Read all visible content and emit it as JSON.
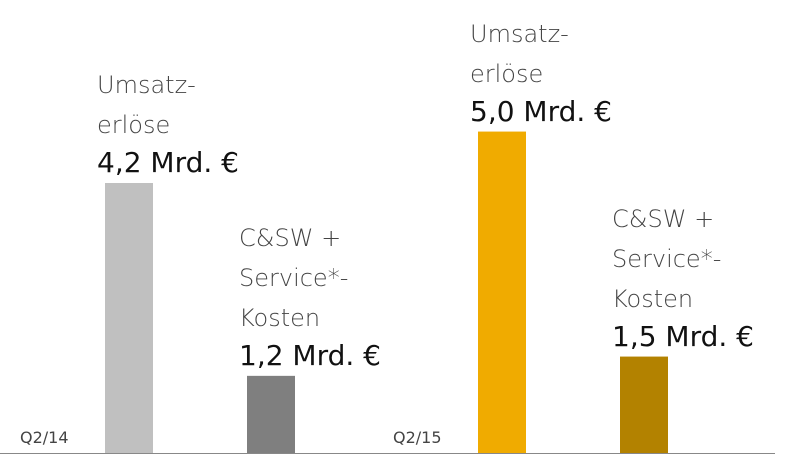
{
  "chart_data": {
    "type": "bar",
    "categories": [
      "Q2/14",
      "Q2/15"
    ],
    "series": [
      {
        "name": "Umsatz-\nerlöse",
        "colors": [
          "#c0c0c0",
          "#f0ab00"
        ],
        "values": [
          4.2,
          5.0
        ],
        "value_labels": [
          "4,2 Mrd. €",
          "5,0 Mrd. €"
        ]
      },
      {
        "name": "C&SW +\nService*-\nKosten",
        "colors": [
          "#7f7f7f",
          "#b38200"
        ],
        "values": [
          1.2,
          1.5
        ],
        "value_labels": [
          "1,2 Mrd. €",
          "1,5 Mrd. €"
        ]
      }
    ],
    "ylim": [
      0,
      7
    ]
  }
}
